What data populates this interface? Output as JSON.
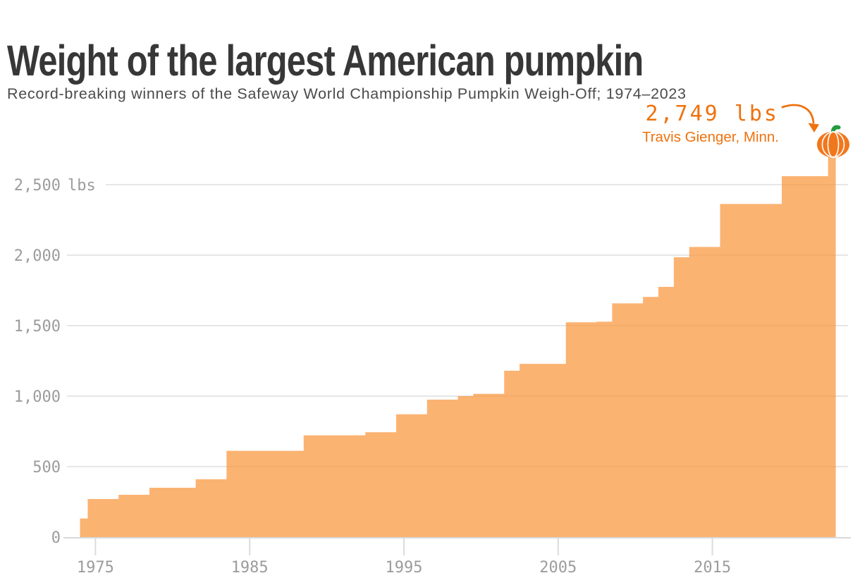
{
  "header": {
    "title": "Weight of the largest American pumpkin",
    "subtitle": "Record-breaking winners of the Safeway World Championship Pumpkin Weigh-Off; 1974–2023"
  },
  "annotation": {
    "value_label": "2,749 lbs",
    "winner_label": "Travis Gienger, Minn."
  },
  "colors": {
    "accent_orange": "#ee720e",
    "bar_fill": "rgba(250,150,60,0.72)",
    "pumpkin_body": "#f1771d",
    "pumpkin_ridge": "rgba(255,255,255,0.95)",
    "pumpkin_stem": "#259b42",
    "grid_line": "#e6e6e6",
    "baseline": "#d9d9d9",
    "tick_mark": "#dcdcdc",
    "axis_label": "#9c9c9c",
    "title_text": "#373737",
    "subtitle_text": "#4b4b4b"
  },
  "chart_data": {
    "type": "area",
    "subtype": "step-record-area",
    "title": "Weight of the largest American pumpkin",
    "subtitle": "Record-breaking winners of the Safeway World Championship Pumpkin Weigh-Off; 1974–2023",
    "xlabel": "",
    "ylabel": "lbs",
    "x_domain": [
      1974,
      2023
    ],
    "y_domain": [
      0,
      2749
    ],
    "x_ticks": [
      1975,
      1985,
      1995,
      2005,
      2015
    ],
    "y_ticks": [
      0,
      500,
      1000,
      1500,
      2000,
      2500
    ],
    "y_unit_suffix_on_top_tick": "lbs",
    "grid": "horizontal",
    "legend": "none",
    "records": [
      {
        "year": 1974,
        "weight": 132
      },
      {
        "year": 1975,
        "weight": 270
      },
      {
        "year": 1977,
        "weight": 300
      },
      {
        "year": 1979,
        "weight": 350
      },
      {
        "year": 1982,
        "weight": 410
      },
      {
        "year": 1984,
        "weight": 612
      },
      {
        "year": 1989,
        "weight": 722
      },
      {
        "year": 1993,
        "weight": 744
      },
      {
        "year": 1995,
        "weight": 871
      },
      {
        "year": 1997,
        "weight": 975
      },
      {
        "year": 1999,
        "weight": 1000
      },
      {
        "year": 2000,
        "weight": 1016
      },
      {
        "year": 2002,
        "weight": 1180
      },
      {
        "year": 2003,
        "weight": 1229
      },
      {
        "year": 2006,
        "weight": 1524
      },
      {
        "year": 2008,
        "weight": 1528
      },
      {
        "year": 2009,
        "weight": 1658
      },
      {
        "year": 2011,
        "weight": 1704
      },
      {
        "year": 2012,
        "weight": 1775
      },
      {
        "year": 2013,
        "weight": 1985
      },
      {
        "year": 2014,
        "weight": 2058
      },
      {
        "year": 2016,
        "weight": 2363
      },
      {
        "year": 2020,
        "weight": 2560
      },
      {
        "year": 2023,
        "weight": 2749
      }
    ],
    "record_holder": {
      "weight_lbs": 2749,
      "name": "Travis Gienger",
      "state": "Minn.",
      "year": 2023
    }
  },
  "icons": {
    "pumpkin": "pumpkin-icon",
    "arrow": "annotation-arrow-icon"
  }
}
